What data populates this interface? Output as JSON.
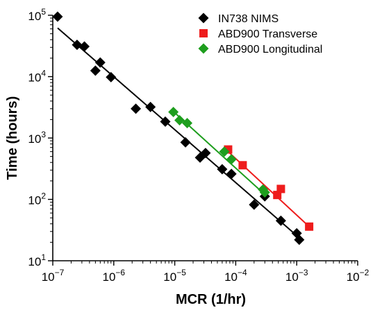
{
  "chart_data": {
    "type": "scatter",
    "xlabel": "MCR (1/hr)",
    "ylabel": "Time (hours)",
    "xscale": "log",
    "yscale": "log",
    "xlim": [
      1e-07,
      0.01
    ],
    "ylim": [
      10,
      100000
    ],
    "x_ticks": [
      {
        "value": 1e-07,
        "base": "10",
        "exp": "−7"
      },
      {
        "value": 1e-06,
        "base": "10",
        "exp": "−6"
      },
      {
        "value": 1e-05,
        "base": "10",
        "exp": "−5"
      },
      {
        "value": 0.0001,
        "base": "10",
        "exp": "−4"
      },
      {
        "value": 0.001,
        "base": "10",
        "exp": "−3"
      },
      {
        "value": 0.01,
        "base": "10",
        "exp": "−2"
      }
    ],
    "y_ticks": [
      {
        "value": 10,
        "base": "10",
        "exp": "1"
      },
      {
        "value": 100,
        "base": "10",
        "exp": "2"
      },
      {
        "value": 1000,
        "base": "10",
        "exp": "3"
      },
      {
        "value": 10000,
        "base": "10",
        "exp": "4"
      },
      {
        "value": 100000,
        "base": "10",
        "exp": "5"
      }
    ],
    "legend_position": "top-right",
    "grid": false,
    "series": [
      {
        "name": "IN738 NIMS",
        "marker": "diamond",
        "color": "#000000",
        "points": [
          [
            1.2e-07,
            95000
          ],
          [
            2.5e-07,
            33000
          ],
          [
            3.3e-07,
            31000
          ],
          [
            5e-07,
            12500
          ],
          [
            6e-07,
            17000
          ],
          [
            9e-07,
            9800
          ],
          [
            2.3e-06,
            3000
          ],
          [
            4e-06,
            3200
          ],
          [
            7e-06,
            1850
          ],
          [
            1.5e-05,
            850
          ],
          [
            2.6e-05,
            480
          ],
          [
            3.2e-05,
            570
          ],
          [
            6e-05,
            310
          ],
          [
            8.5e-05,
            260
          ],
          [
            0.0002,
            82
          ],
          [
            0.0003,
            112
          ],
          [
            0.00055,
            45
          ],
          [
            0.001,
            28
          ],
          [
            0.0011,
            22
          ]
        ],
        "fit": [
          [
            1.2e-07,
            62000
          ],
          [
            0.0012,
            22
          ]
        ]
      },
      {
        "name": "ABD900 Transverse",
        "marker": "square",
        "color": "#ee1c1c",
        "points": [
          [
            7.5e-05,
            650
          ],
          [
            0.00013,
            360
          ],
          [
            0.00048,
            118
          ],
          [
            0.00055,
            148
          ],
          [
            0.0016,
            36
          ]
        ],
        "fit": [
          [
            7e-05,
            640
          ],
          [
            0.0016,
            36
          ]
        ]
      },
      {
        "name": "ABD900 Longitudinal",
        "marker": "diamond",
        "color": "#1e9e1e",
        "points": [
          [
            9.5e-06,
            2650
          ],
          [
            1.2e-05,
            1950
          ],
          [
            1.6e-05,
            1750
          ],
          [
            6.5e-05,
            600
          ],
          [
            8.5e-05,
            450
          ],
          [
            0.00028,
            145
          ],
          [
            0.0003,
            130
          ]
        ],
        "fit": [
          [
            9.5e-06,
            2700
          ],
          [
            0.0003,
            120
          ]
        ]
      }
    ]
  }
}
